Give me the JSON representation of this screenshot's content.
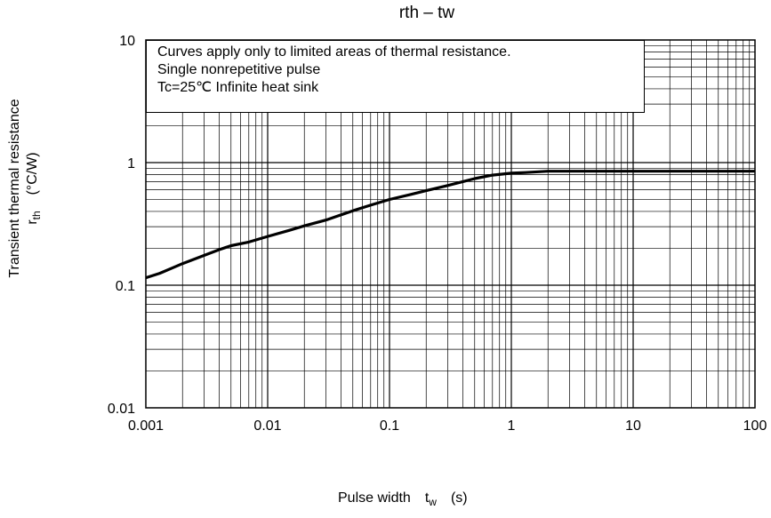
{
  "chart_data": {
    "type": "line",
    "title": "rth – tw",
    "x_scale": "log",
    "y_scale": "log",
    "xlim": [
      0.001,
      100
    ],
    "ylim": [
      0.01,
      10
    ],
    "x_ticks": [
      "0.001",
      "0.01",
      "0.1",
      "1",
      "10",
      "100"
    ],
    "y_ticks": [
      "0.01",
      "0.1",
      "1",
      "10"
    ],
    "grid": true,
    "xlabel": {
      "prefix": "Pulse width",
      "symbol": "t",
      "sub": "w",
      "unit": "(s)"
    },
    "ylabel": {
      "line1": "Transient thermal resistance",
      "symbol": "r",
      "sub": "th",
      "unit": "(°C/W)"
    },
    "annotation": [
      "Curves apply only to limited areas of thermal resistance.",
      "Single nonrepetitive pulse",
      "Tc=25℃  Infinite heat sink"
    ],
    "series": [
      {
        "x": [
          0.001,
          0.0013,
          0.0017,
          0.002,
          0.003,
          0.004,
          0.005,
          0.007,
          0.01,
          0.015,
          0.02,
          0.03,
          0.04,
          0.05,
          0.07,
          0.1,
          0.15,
          0.2,
          0.3,
          0.4,
          0.5,
          0.7,
          1,
          1.3,
          2,
          3,
          5,
          10,
          20,
          50,
          100
        ],
        "y": [
          0.115,
          0.125,
          0.14,
          0.15,
          0.175,
          0.195,
          0.21,
          0.225,
          0.25,
          0.28,
          0.305,
          0.34,
          0.375,
          0.405,
          0.45,
          0.5,
          0.55,
          0.59,
          0.65,
          0.7,
          0.74,
          0.79,
          0.82,
          0.83,
          0.85,
          0.85,
          0.85,
          0.85,
          0.85,
          0.85,
          0.85
        ]
      }
    ]
  }
}
